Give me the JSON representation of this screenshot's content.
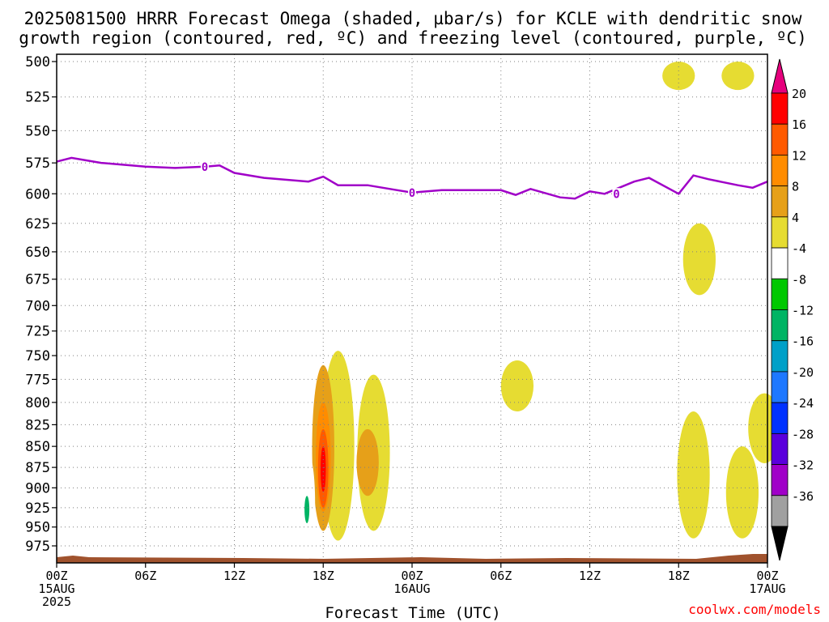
{
  "title": {
    "line1": "2025081500 HRRR Forecast Omega (shaded, µbar/s) for KCLE with dendritic snow",
    "line2": "growth region (contoured, red, ºC) and freezing level (contoured, purple, ºC)"
  },
  "credit": "coolwx.com/models",
  "colors": {
    "freezing_level": "#a000c8",
    "ground": "#a0522d",
    "grid": "#808080"
  },
  "chart_data": {
    "type": "heatmap",
    "title": "2025081500 HRRR Forecast Omega (shaded, µbar/s) for KCLE with dendritic snow growth region (contoured, red, ºC) and freezing level (contoured, purple, ºC)",
    "xlabel": "Forecast Time (UTC)",
    "ylabel": "",
    "x_range_hours": [
      0,
      48
    ],
    "y_range_mb": [
      500,
      1000
    ],
    "y_scale": "log-pressure (inverted)",
    "grid": true,
    "x_ticks": [
      {
        "hour": 0,
        "line1": "00Z",
        "line2": "15AUG",
        "line3": "2025"
      },
      {
        "hour": 6,
        "line1": "06Z",
        "line2": "",
        "line3": ""
      },
      {
        "hour": 12,
        "line1": "12Z",
        "line2": "",
        "line3": ""
      },
      {
        "hour": 18,
        "line1": "18Z",
        "line2": "",
        "line3": ""
      },
      {
        "hour": 24,
        "line1": "00Z",
        "line2": "16AUG",
        "line3": ""
      },
      {
        "hour": 30,
        "line1": "06Z",
        "line2": "",
        "line3": ""
      },
      {
        "hour": 36,
        "line1": "12Z",
        "line2": "",
        "line3": ""
      },
      {
        "hour": 42,
        "line1": "18Z",
        "line2": "",
        "line3": ""
      },
      {
        "hour": 48,
        "line1": "00Z",
        "line2": "17AUG",
        "line3": ""
      }
    ],
    "y_ticks": [
      "500",
      "525",
      "550",
      "575",
      "600",
      "625",
      "650",
      "675",
      "700",
      "725",
      "750",
      "775",
      "800",
      "825",
      "850",
      "875",
      "900",
      "925",
      "950",
      "975"
    ],
    "colorbar": {
      "labels": [
        "20",
        "16",
        "12",
        "8",
        "4",
        "-4",
        "-8",
        "-12",
        "-16",
        "-20",
        "-24",
        "-28",
        "-32",
        "-36"
      ],
      "colors": [
        "#ff0000",
        "#ff5a00",
        "#ff8c00",
        "#e6a019",
        "#e6dc32",
        "#ffffff",
        "#00c800",
        "#00b464",
        "#00a0c8",
        "#1e78ff",
        "#0032ff",
        "#5a00dc",
        "#a000c8",
        "#a0a0a0"
      ],
      "top_arrow": "#e6007d",
      "bottom_arrow": "#000000"
    },
    "freezing_level_mb": [
      [
        0,
        574
      ],
      [
        1,
        571
      ],
      [
        3,
        575
      ],
      [
        6,
        578
      ],
      [
        8,
        579
      ],
      [
        10,
        578
      ],
      [
        11,
        577
      ],
      [
        12,
        583
      ],
      [
        14,
        587
      ],
      [
        17,
        590
      ],
      [
        18,
        586
      ],
      [
        19,
        593
      ],
      [
        21,
        593
      ],
      [
        23,
        597
      ],
      [
        24,
        599
      ],
      [
        26,
        597
      ],
      [
        30,
        597
      ],
      [
        31,
        601
      ],
      [
        32,
        596
      ],
      [
        34,
        603
      ],
      [
        35,
        604
      ],
      [
        36,
        598
      ],
      [
        37,
        600
      ],
      [
        39,
        590
      ],
      [
        40,
        587
      ],
      [
        42,
        600
      ],
      [
        43,
        585
      ],
      [
        44,
        588
      ],
      [
        46,
        593
      ],
      [
        47,
        595
      ],
      [
        48,
        590
      ]
    ],
    "freezing_level_labels": [
      {
        "hour": 10,
        "mb": 578,
        "text": "0"
      },
      {
        "hour": 24,
        "mb": 599,
        "text": "0"
      },
      {
        "hour": 37.8,
        "mb": 600,
        "text": "0"
      }
    ],
    "omega_regions": [
      {
        "value": 4,
        "hour": 19.0,
        "mb_top": 745,
        "mb_bottom": 968
      },
      {
        "value": 4,
        "hour": 21.4,
        "mb_top": 770,
        "mb_bottom": 955
      },
      {
        "value": 8,
        "hour": 18.0,
        "mb_top": 760,
        "mb_bottom": 955
      },
      {
        "value": 8,
        "hour": 21.0,
        "mb_top": 830,
        "mb_bottom": 910
      },
      {
        "value": 12,
        "hour": 18.0,
        "mb_top": 800,
        "mb_bottom": 930
      },
      {
        "value": 16,
        "hour": 18.0,
        "mb_top": 830,
        "mb_bottom": 925
      },
      {
        "value": 20,
        "hour": 18.0,
        "mb_top": 850,
        "mb_bottom": 905
      },
      {
        "value": -4,
        "hour": 17.0,
        "mb_top": 860,
        "mb_bottom": 980
      },
      {
        "value": -12,
        "hour": 16.9,
        "mb_top": 910,
        "mb_bottom": 945
      },
      {
        "value": -4,
        "hour": 9.2,
        "mb_top": 790,
        "mb_bottom": 835
      },
      {
        "value": -4,
        "hour": 27.0,
        "mb_top": 765,
        "mb_bottom": 840
      },
      {
        "value": 4,
        "hour": 31.1,
        "mb_top": 755,
        "mb_bottom": 810
      },
      {
        "value": -4,
        "hour": 41.5,
        "mb_top": 630,
        "mb_bottom": 825
      },
      {
        "value": 4,
        "hour": 43.4,
        "mb_top": 625,
        "mb_bottom": 690
      },
      {
        "value": 4,
        "hour": 43.0,
        "mb_top": 810,
        "mb_bottom": 965
      },
      {
        "value": 4,
        "hour": 46.3,
        "mb_top": 850,
        "mb_bottom": 965
      },
      {
        "value": 4,
        "hour": 42.0,
        "mb_top": 500,
        "mb_bottom": 520
      },
      {
        "value": 4,
        "hour": 46.0,
        "mb_top": 500,
        "mb_bottom": 520
      },
      {
        "value": -4,
        "hour": 47.9,
        "mb_top": 670,
        "mb_bottom": 860
      },
      {
        "value": 4,
        "hour": 47.8,
        "mb_top": 790,
        "mb_bottom": 870
      }
    ]
  }
}
